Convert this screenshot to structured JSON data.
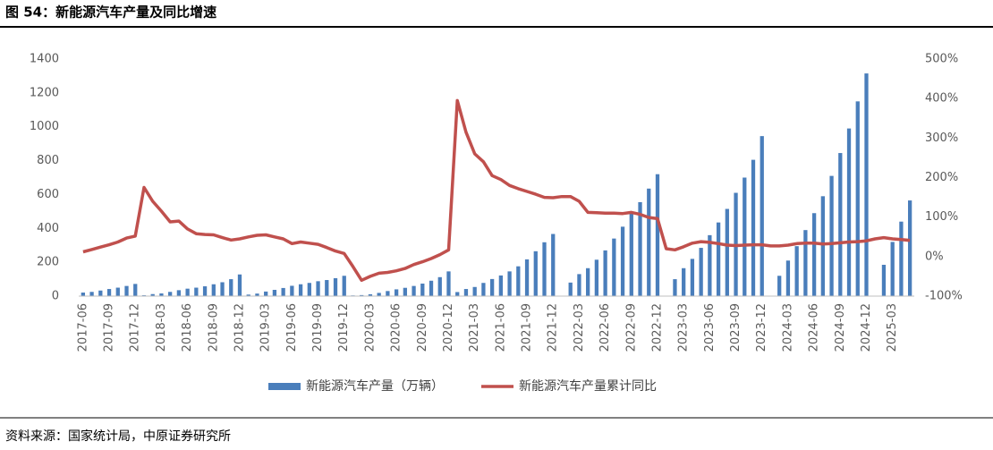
{
  "chart_data": {
    "type": "bar-line",
    "title": "图 54：新能源汽车产量及同比增速",
    "source": "资料来源：国家统计局，中原证券研究所",
    "categories": [
      "2017-06",
      null,
      null,
      "2017-09",
      null,
      null,
      "2017-12",
      null,
      null,
      "2018-03",
      null,
      null,
      "2018-06",
      null,
      null,
      "2018-09",
      null,
      null,
      "2018-12",
      null,
      null,
      "2019-03",
      null,
      null,
      "2019-06",
      null,
      null,
      "2019-09",
      null,
      null,
      "2019-12",
      null,
      null,
      "2020-03",
      null,
      null,
      "2020-06",
      null,
      null,
      "2020-09",
      null,
      null,
      "2020-12",
      null,
      null,
      "2021-03",
      null,
      null,
      "2021-06",
      null,
      null,
      "2021-09",
      null,
      null,
      "2021-12",
      null,
      null,
      "2022-03",
      null,
      null,
      "2022-06",
      null,
      null,
      "2022-09",
      null,
      null,
      "2022-12",
      null,
      null,
      "2023-03",
      null,
      null,
      "2023-06",
      null,
      null,
      "2023-09",
      null,
      null,
      "2023-12",
      null,
      null,
      "2024-03",
      null,
      null,
      "2024-06",
      null,
      null,
      "2024-09",
      null,
      null,
      "2024-12",
      null,
      null,
      "2025-03",
      null,
      null
    ],
    "series": [
      {
        "name": "新能源汽车产量（万辆）",
        "type": "bar",
        "color": "#4a7ebb",
        "axis": "y",
        "values": [
          21,
          25,
          33,
          42,
          50,
          60,
          72,
          5,
          12,
          16,
          25,
          35,
          44,
          50,
          58,
          70,
          82,
          100,
          128,
          9,
          15,
          27,
          37,
          48,
          61,
          70,
          78,
          88,
          95,
          106,
          120,
          4,
          6,
          11,
          19,
          30,
          40,
          49,
          60,
          74,
          91,
          112,
          146,
          24,
          42,
          54,
          78,
          101,
          122,
          146,
          176,
          217,
          265,
          318,
          367,
          null,
          80,
          130,
          165,
          215,
          270,
          340,
          410,
          490,
          555,
          635,
          720,
          null,
          100,
          165,
          220,
          285,
          360,
          435,
          515,
          610,
          700,
          805,
          945,
          null,
          120,
          210,
          295,
          390,
          490,
          590,
          710,
          845,
          990,
          1150,
          1315,
          null,
          185,
          320,
          440,
          565
        ]
      },
      {
        "name": "新能源汽车产量累计同比",
        "type": "line",
        "color": "#c0504d",
        "axis": "y2",
        "values": [
          12,
          18,
          24,
          30,
          37,
          47,
          52,
          175,
          140,
          115,
          88,
          90,
          70,
          58,
          56,
          55,
          48,
          42,
          45,
          50,
          54,
          55,
          50,
          45,
          33,
          37,
          34,
          31,
          23,
          14,
          8,
          -25,
          -60,
          -50,
          -42,
          -40,
          -36,
          -30,
          -20,
          -13,
          -5,
          5,
          17,
          395,
          315,
          260,
          240,
          205,
          195,
          180,
          172,
          165,
          158,
          150,
          149,
          152,
          152,
          140,
          112,
          111,
          110,
          110,
          109,
          112,
          107,
          99,
          96,
          20,
          17,
          25,
          34,
          38,
          36,
          33,
          29,
          28,
          29,
          30,
          30,
          27,
          27,
          29,
          33,
          34,
          34,
          32,
          33,
          35,
          37,
          38,
          40,
          45,
          48,
          45,
          43,
          41
        ]
      }
    ],
    "ylim": [
      0,
      1400
    ],
    "yticks": [
      0,
      200,
      400,
      600,
      800,
      1000,
      1200,
      1400
    ],
    "y2lim": [
      -100,
      500
    ],
    "y2ticks": [
      {
        "value": -100,
        "label": "-100%"
      },
      {
        "value": 0,
        "label": "0%"
      },
      {
        "value": 100,
        "label": "100%"
      },
      {
        "value": 200,
        "label": "200%"
      },
      {
        "value": 300,
        "label": "300%"
      },
      {
        "value": 400,
        "label": "400%"
      },
      {
        "value": 500,
        "label": "500%"
      }
    ],
    "grid": false,
    "legend": "bottom"
  }
}
